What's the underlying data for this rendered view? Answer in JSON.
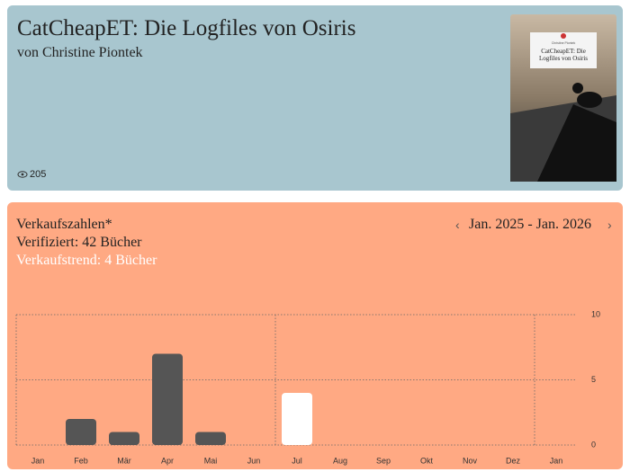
{
  "header": {
    "title": "CatCheapET: Die Logfiles von Osiris",
    "author": "von Christine Piontek",
    "views": 205,
    "cover": {
      "author": "Christine Piontek",
      "title": "CatCheapET: Die Logfiles von Osiris"
    }
  },
  "sales": {
    "heading": "Verkaufszahlen*",
    "verified": "Verifiziert: 42 Bücher",
    "trend": "Verkaufstrend: 4 Bücher",
    "range": "Jan. 2025 - Jan. 2026"
  },
  "chart_data": {
    "type": "bar",
    "categories": [
      "Jan",
      "Feb",
      "Mär",
      "Apr",
      "Mai",
      "Jun",
      "Jul",
      "Aug",
      "Sep",
      "Okt",
      "Nov",
      "Dez",
      "Jan"
    ],
    "series": [
      {
        "color": "#555555",
        "values": [
          0,
          2,
          1,
          7,
          1,
          0,
          null,
          null,
          null,
          null,
          null,
          null,
          null
        ]
      },
      {
        "color": "#ffffff",
        "values": [
          null,
          null,
          null,
          null,
          null,
          null,
          4,
          null,
          null,
          null,
          null,
          null,
          null
        ]
      }
    ],
    "ylim": [
      0,
      10
    ],
    "yticks": [
      0,
      5,
      10
    ],
    "grid": true
  }
}
